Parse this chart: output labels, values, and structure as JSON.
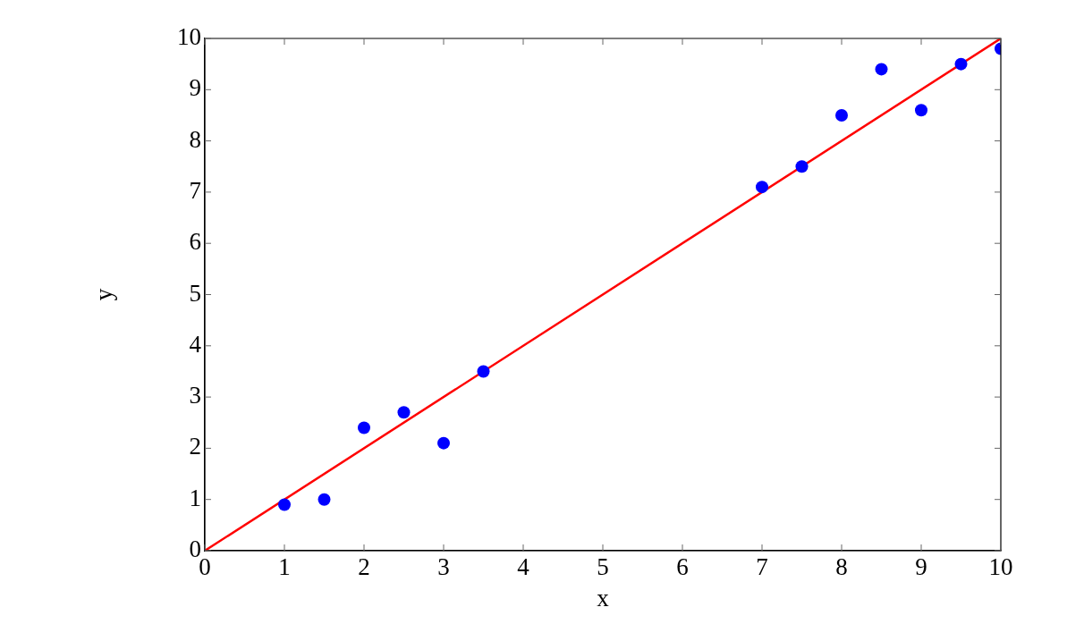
{
  "chart_data": {
    "type": "scatter",
    "xlabel": "x",
    "ylabel": "y",
    "marker": "circle",
    "xlim": [
      0,
      10
    ],
    "xticks": [
      0,
      1,
      2,
      3,
      4,
      5,
      6,
      7,
      8,
      9,
      10
    ],
    "ylim": [
      0,
      10
    ],
    "yticks": [
      0,
      1,
      2,
      3,
      4,
      5,
      6,
      7,
      8,
      9,
      10
    ],
    "series": [
      {
        "color": "#0000ff",
        "x": [
          1,
          1.5,
          2,
          2.5,
          3,
          3.5,
          7,
          7.5,
          8,
          8.5,
          9,
          9.5,
          10
        ],
        "values": [
          0.9,
          1.0,
          2.4,
          2.7,
          2.1,
          3.5,
          7.1,
          7.5,
          8.5,
          9.4,
          8.6,
          9.5,
          9.8
        ]
      },
      {
        "type": "line",
        "color": "#ff0000",
        "line_style": "solid",
        "marker": "none",
        "x": [
          0,
          10
        ],
        "values": [
          0,
          10
        ]
      }
    ]
  }
}
